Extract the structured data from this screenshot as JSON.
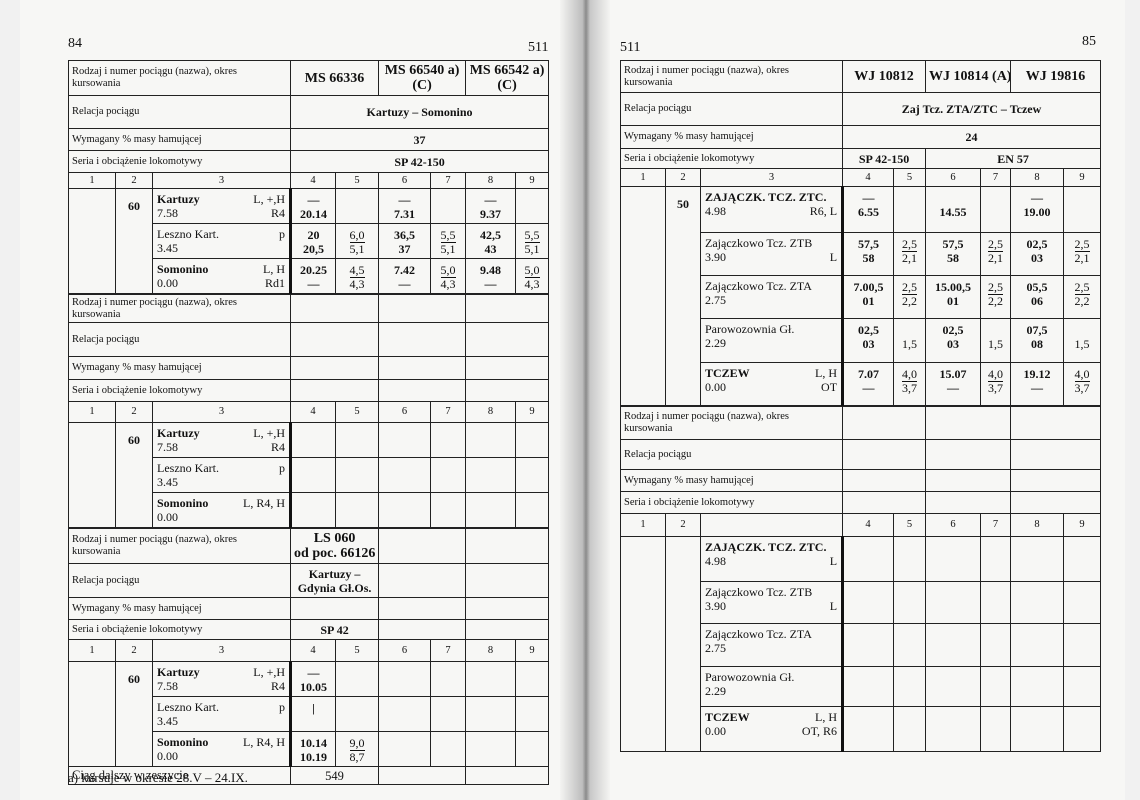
{
  "left_page": {
    "page_number": "84",
    "header_number": "511",
    "blocks": [
      {
        "labels": {
          "train": "Rodzaj i numer pociągu (nazwa), okres kursowania",
          "relation": "Relacja pociągu",
          "brake": "Wymagany % masy hamującej",
          "loco": "Seria i obciążenie lokomotywy"
        },
        "trains": [
          [
            "MS 66336"
          ],
          [
            "MS 66540 a)",
            "(C)"
          ],
          [
            "MS 66542 a)",
            "(C)"
          ]
        ],
        "relation": [
          "Kartuzy – Somonino"
        ],
        "brake": [
          "37"
        ],
        "loco": [
          "SP 42-150"
        ],
        "column_numbers": [
          "1",
          "2",
          "3",
          "4",
          "5",
          "6",
          "7",
          "8",
          "9"
        ],
        "speed": "60",
        "stations": [
          {
            "name": "Kartuzy",
            "code": "L, +,H",
            "km": "7.58",
            "code2": "R4",
            "bold": true,
            "times": [
              [
                "—",
                "20.14"
              ],
              null,
              [
                "—",
                "7.31"
              ],
              null,
              [
                "—",
                "9.37"
              ],
              null
            ]
          },
          {
            "name": "Leszno Kart.",
            "code": "p",
            "km": "3.45",
            "times": [
              [
                "20",
                "20,5"
              ],
              [
                "6,0",
                "5,1"
              ],
              [
                "36,5",
                "37"
              ],
              [
                "5,5",
                "5,1"
              ],
              [
                "42,5",
                "43"
              ],
              [
                "5,5",
                "5,1"
              ]
            ]
          },
          {
            "name": "Somonino",
            "code": "L, H",
            "km": "0.00",
            "code2": "Rd1",
            "bold": true,
            "times": [
              [
                "20.25",
                "—"
              ],
              [
                "4,5",
                "4,3"
              ],
              [
                "7.42",
                "—"
              ],
              [
                "5,0",
                "4,3"
              ],
              [
                "9.48",
                "—"
              ],
              [
                "5,0",
                "4,3"
              ]
            ]
          }
        ]
      },
      {
        "labels": {
          "train": "Rodzaj i numer pociągu (nazwa), okres kursowania",
          "relation": "Relacja pociągu",
          "brake": "Wymagany % masy hamującej",
          "loco": "Seria i obciążenie lokomotywy"
        },
        "trains": [],
        "relation": [],
        "brake": [],
        "loco": [],
        "column_numbers": [
          "1",
          "2",
          "3",
          "4",
          "5",
          "6",
          "7",
          "8",
          "9"
        ],
        "speed": "60",
        "stations": [
          {
            "name": "Kartuzy",
            "code": "L, +,H",
            "km": "7.58",
            "code2": "R4",
            "bold": true
          },
          {
            "name": "Leszno Kart.",
            "code": "p",
            "km": "3.45"
          },
          {
            "name": "Somonino",
            "code": "L, R4, H",
            "km": "0.00",
            "bold": true
          }
        ]
      },
      {
        "labels": {
          "train": "Rodzaj i numer pociągu (nazwa), okres kursowania",
          "relation": "Relacja pociągu",
          "brake": "Wymagany % masy hamującej",
          "loco": "Seria i obciążenie lokomotywy"
        },
        "trains": [
          [
            "LS 060",
            "od poc. 66126"
          ]
        ],
        "relation": [
          "Kartuzy – Gdynia Gł.Os."
        ],
        "brake": [],
        "loco": [
          "SP 42"
        ],
        "column_numbers": [
          "1",
          "2",
          "3",
          "4",
          "5",
          "6",
          "7",
          "8",
          "9"
        ],
        "speed": "60",
        "stations": [
          {
            "name": "Kartuzy",
            "code": "L, +,H",
            "km": "7.58",
            "code2": "R4",
            "bold": true,
            "times": [
              [
                "—",
                "10.05"
              ]
            ]
          },
          {
            "name": "Leszno Kart.",
            "code": "p",
            "km": "3.45",
            "times": [
              [
                "|"
              ]
            ]
          },
          {
            "name": "Somonino",
            "code": "L, R4, H",
            "km": "0.00",
            "bold": true,
            "times": [
              [
                "10.14",
                "10.19"
              ],
              [
                "9,0",
                "8,7"
              ]
            ]
          }
        ],
        "footer": [
          "Ciąg dalszy w zeszycie",
          "549"
        ]
      }
    ],
    "footnote": "a) kursuje w okresie 28.V – 24.IX."
  },
  "right_page": {
    "page_number": "85",
    "header_number": "511",
    "blocks": [
      {
        "labels": {
          "train": "Rodzaj i numer pociągu (nazwa), okres kursowania",
          "relation": "Relacja pociągu",
          "brake": "Wymagany % masy hamującej",
          "loco": "Seria i obciążenie lokomotywy"
        },
        "trains": [
          [
            "WJ 10812"
          ],
          [
            "WJ 10814 (A)"
          ],
          [
            "WJ 19816"
          ]
        ],
        "relation": [
          "Zaj Tcz. ZTA/ZTC – Tczew"
        ],
        "brake": [
          "24"
        ],
        "loco": [
          "SP 42-150",
          "EN 57"
        ],
        "column_numbers": [
          "1",
          "2",
          "3",
          "4",
          "5",
          "6",
          "7",
          "8",
          "9"
        ],
        "speed": "50",
        "stations": [
          {
            "name": "ZAJĄCZK. TCZ. ZTC.",
            "km": "4.98",
            "code2": "R6, L",
            "bold": true,
            "times": [
              [
                "—",
                "6.55"
              ],
              null,
              [
                null,
                "14.55"
              ],
              null,
              [
                "—",
                "19.00"
              ],
              null
            ]
          },
          {
            "name": "Zajączkowo Tcz. ZTB",
            "km": "3.90",
            "code2": "L",
            "times": [
              [
                "57,5",
                "58"
              ],
              [
                "2,5",
                "2,1"
              ],
              [
                "57,5",
                "58"
              ],
              [
                "2,5",
                "2,1"
              ],
              [
                "02,5",
                "03"
              ],
              [
                "2,5",
                "2,1"
              ]
            ]
          },
          {
            "name": "Zajączkowo Tcz. ZTA",
            "km": "2.75",
            "times": [
              [
                "7.00,5",
                "01"
              ],
              [
                "2,5",
                "2,2"
              ],
              [
                "15.00,5",
                "01"
              ],
              [
                "2,5",
                "2,2"
              ],
              [
                "05,5",
                "06"
              ],
              [
                "2,5",
                "2,2"
              ]
            ]
          },
          {
            "name": "Parowozownia Gł.",
            "km": "2.29",
            "times": [
              [
                "02,5",
                "03"
              ],
              [
                null,
                "1,5"
              ],
              [
                "02,5",
                "03"
              ],
              [
                null,
                "1,5"
              ],
              [
                "07,5",
                "08"
              ],
              [
                null,
                "1,5"
              ]
            ]
          },
          {
            "name": "TCZEW",
            "code": "L, H",
            "km": "0.00",
            "code2": "OT",
            "bold": true,
            "times": [
              [
                "7.07",
                "—"
              ],
              [
                "4,0",
                "3,7"
              ],
              [
                "15.07",
                "—"
              ],
              [
                "4,0",
                "3,7"
              ],
              [
                "19.12",
                "—"
              ],
              [
                "4,0",
                "3,7"
              ]
            ]
          }
        ]
      },
      {
        "labels": {
          "train": "Rodzaj i numer pociągu (nazwa), okres kursowania",
          "relation": "Relacja pociągu",
          "brake": "Wymagany % masy hamującej",
          "loco": "Seria i obciążenie lokomotywy"
        },
        "trains": [],
        "relation": [],
        "brake": [],
        "loco": [],
        "column_numbers": [
          "1",
          "2",
          null,
          "4",
          "5",
          "6",
          "7",
          "8",
          "9"
        ],
        "stations": [
          {
            "name": "ZAJĄCZK. TCZ. ZTC.",
            "km": "4.98",
            "code2": "L",
            "bold": true
          },
          {
            "name": "Zajączkowo Tcz. ZTB",
            "km": "3.90",
            "code2": "L"
          },
          {
            "name": "Zajączkowo Tcz. ZTA",
            "km": "2.75"
          },
          {
            "name": "Parowozownia Gł.",
            "km": "2.29"
          },
          {
            "name": "TCZEW",
            "code": "L, H",
            "km": "0.00",
            "code2": "OT, R6",
            "bold": true
          }
        ]
      }
    ]
  }
}
